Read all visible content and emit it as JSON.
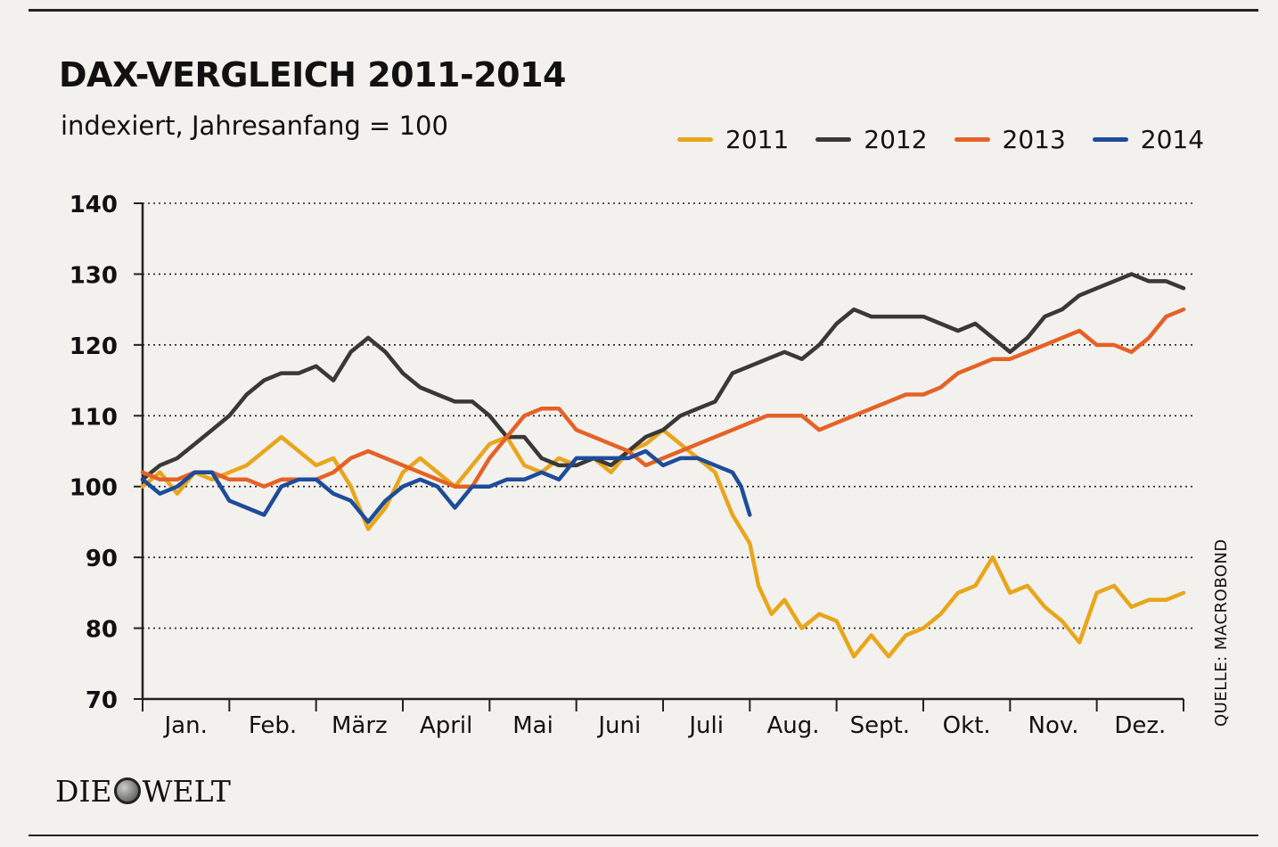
{
  "chart_data": {
    "type": "line",
    "title": "DAX-VERGLEICH 2011-2014",
    "subtitle": "indexiert, Jahresanfang = 100",
    "ylim": [
      70,
      140
    ],
    "yticks": [
      70,
      80,
      90,
      100,
      110,
      120,
      130,
      140
    ],
    "xlim": [
      1,
      13
    ],
    "month_labels": [
      "Jan.",
      "Feb.",
      "März",
      "April",
      "Mai",
      "Juni",
      "Juli",
      "Aug.",
      "Sept.",
      "Okt.",
      "Nov.",
      "Dez."
    ],
    "grid": "horizontal dotted",
    "legend_position": "top-right",
    "series": [
      {
        "name": "2011",
        "color": "#e8a61c",
        "x": [
          1.0,
          1.2,
          1.4,
          1.6,
          1.8,
          2.0,
          2.2,
          2.4,
          2.6,
          2.8,
          3.0,
          3.2,
          3.4,
          3.6,
          3.8,
          4.0,
          4.2,
          4.4,
          4.6,
          4.8,
          5.0,
          5.2,
          5.4,
          5.6,
          5.8,
          6.0,
          6.2,
          6.4,
          6.6,
          6.8,
          7.0,
          7.2,
          7.4,
          7.6,
          7.8,
          8.0,
          8.1,
          8.25,
          8.4,
          8.6,
          8.8,
          9.0,
          9.2,
          9.4,
          9.6,
          9.8,
          10.0,
          10.2,
          10.4,
          10.6,
          10.8,
          11.0,
          11.2,
          11.4,
          11.6,
          11.8,
          12.0,
          12.2,
          12.4,
          12.6,
          12.8,
          13.0
        ],
        "y": [
          100,
          102,
          99,
          102,
          101,
          102,
          103,
          105,
          107,
          105,
          103,
          104,
          100,
          94,
          97,
          102,
          104,
          102,
          100,
          103,
          106,
          107,
          103,
          102,
          104,
          103,
          104,
          102,
          105,
          106,
          108,
          106,
          104,
          102,
          96,
          92,
          86,
          82,
          84,
          80,
          82,
          81,
          76,
          79,
          76,
          79,
          80,
          82,
          85,
          86,
          90,
          85,
          86,
          83,
          81,
          78,
          85,
          86,
          83,
          84,
          84,
          85
        ]
      },
      {
        "name": "2012",
        "color": "#3a3836",
        "x": [
          1.0,
          1.2,
          1.4,
          1.6,
          1.8,
          2.0,
          2.2,
          2.4,
          2.6,
          2.8,
          3.0,
          3.2,
          3.4,
          3.6,
          3.8,
          4.0,
          4.2,
          4.4,
          4.6,
          4.8,
          5.0,
          5.2,
          5.4,
          5.6,
          5.8,
          6.0,
          6.2,
          6.4,
          6.6,
          6.8,
          7.0,
          7.2,
          7.4,
          7.6,
          7.8,
          8.0,
          8.2,
          8.4,
          8.6,
          8.8,
          9.0,
          9.2,
          9.4,
          9.6,
          9.8,
          10.0,
          10.2,
          10.4,
          10.6,
          10.8,
          11.0,
          11.2,
          11.4,
          11.6,
          11.8,
          12.0,
          12.2,
          12.4,
          12.6,
          12.8,
          13.0
        ],
        "y": [
          101,
          103,
          104,
          106,
          108,
          110,
          113,
          115,
          116,
          116,
          117,
          115,
          119,
          121,
          119,
          116,
          114,
          113,
          112,
          112,
          110,
          107,
          107,
          104,
          103,
          103,
          104,
          103,
          105,
          107,
          108,
          110,
          111,
          112,
          116,
          117,
          118,
          119,
          118,
          120,
          123,
          125,
          124,
          124,
          124,
          124,
          123,
          122,
          123,
          121,
          119,
          121,
          124,
          125,
          127,
          128,
          129,
          130,
          129,
          129,
          128
        ]
      },
      {
        "name": "2013",
        "color": "#e56227",
        "x": [
          1.0,
          1.2,
          1.4,
          1.6,
          1.8,
          2.0,
          2.2,
          2.4,
          2.6,
          2.8,
          3.0,
          3.2,
          3.4,
          3.6,
          3.8,
          4.0,
          4.2,
          4.4,
          4.6,
          4.8,
          5.0,
          5.2,
          5.4,
          5.6,
          5.8,
          6.0,
          6.2,
          6.4,
          6.6,
          6.8,
          7.0,
          7.2,
          7.4,
          7.6,
          7.8,
          8.0,
          8.2,
          8.4,
          8.6,
          8.8,
          9.0,
          9.2,
          9.4,
          9.6,
          9.8,
          10.0,
          10.2,
          10.4,
          10.6,
          10.8,
          11.0,
          11.2,
          11.4,
          11.6,
          11.8,
          12.0,
          12.2,
          12.4,
          12.6,
          12.8,
          13.0
        ],
        "y": [
          102,
          101,
          101,
          102,
          102,
          101,
          101,
          100,
          101,
          101,
          101,
          102,
          104,
          105,
          104,
          103,
          102,
          101,
          100,
          100,
          104,
          107,
          110,
          111,
          111,
          108,
          107,
          106,
          105,
          103,
          104,
          105,
          106,
          107,
          108,
          109,
          110,
          110,
          110,
          108,
          109,
          110,
          111,
          112,
          113,
          113,
          114,
          116,
          117,
          118,
          118,
          119,
          120,
          121,
          122,
          120,
          120,
          119,
          121,
          124,
          125
        ]
      },
      {
        "name": "2014",
        "color": "#1e4c9a",
        "x": [
          1.0,
          1.2,
          1.4,
          1.6,
          1.8,
          2.0,
          2.2,
          2.4,
          2.6,
          2.8,
          3.0,
          3.2,
          3.4,
          3.6,
          3.8,
          4.0,
          4.2,
          4.4,
          4.6,
          4.8,
          5.0,
          5.2,
          5.4,
          5.6,
          5.8,
          6.0,
          6.2,
          6.4,
          6.6,
          6.8,
          7.0,
          7.2,
          7.4,
          7.6,
          7.8,
          7.9,
          8.0
        ],
        "y": [
          101,
          99,
          100,
          102,
          102,
          98,
          97,
          96,
          100,
          101,
          101,
          99,
          98,
          95,
          98,
          100,
          101,
          100,
          97,
          100,
          100,
          101,
          101,
          102,
          101,
          104,
          104,
          104,
          104,
          105,
          103,
          104,
          104,
          103,
          102,
          100,
          96
        ]
      }
    ],
    "source": "QUELLE: MACROBOND"
  },
  "publisher": {
    "left": "DIE",
    "right": "WELT",
    "icon": "globe-icon"
  }
}
